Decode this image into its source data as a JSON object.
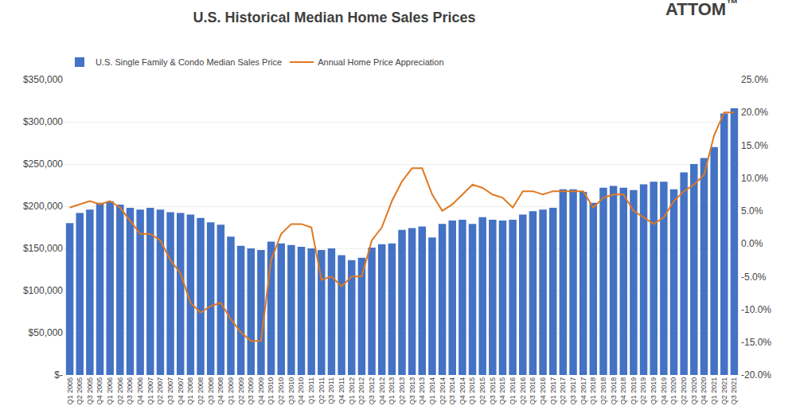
{
  "chart_data": {
    "type": "bar",
    "title": "U.S. Historical Median Home Sales Prices",
    "categories": [
      "Q1 2005",
      "Q2 2005",
      "Q3 2005",
      "Q4 2005",
      "Q1 2006",
      "Q2 2006",
      "Q3 2006",
      "Q4 2006",
      "Q1 2007",
      "Q2 2007",
      "Q3 2007",
      "Q4 2007",
      "Q1 2008",
      "Q2 2008",
      "Q3 2008",
      "Q4 2008",
      "Q1 2009",
      "Q2 2009",
      "Q3 2009",
      "Q4 2009",
      "Q1 2010",
      "Q2 2010",
      "Q3 2010",
      "Q4 2010",
      "Q1 2011",
      "Q2 2011",
      "Q3 2011",
      "Q4 2011",
      "Q1 2012",
      "Q2 2012",
      "Q3 2012",
      "Q4 2012",
      "Q1 2013",
      "Q2 2013",
      "Q3 2013",
      "Q4 2013",
      "Q1 2014",
      "Q2 2014",
      "Q3 2014",
      "Q4 2014",
      "Q1 2015",
      "Q2 2015",
      "Q3 2015",
      "Q4 2015",
      "Q1 2016",
      "Q2 2016",
      "Q3 2016",
      "Q4 2016",
      "Q1 2017",
      "Q2 2017",
      "Q3 2017",
      "Q4 2017",
      "Q1 2018",
      "Q2 2018",
      "Q3 2018",
      "Q4 2018",
      "Q1 2019",
      "Q2 2019",
      "Q3 2019",
      "Q4 2019",
      "Q1 2020",
      "Q2 2020",
      "Q3 2020",
      "Q4 2020",
      "Q1 2021",
      "Q2 2021",
      "Q3 2021"
    ],
    "series": [
      {
        "name": "U.S. Single Family & Condo Median Sales Price",
        "type": "bar",
        "color": "#4472C4",
        "values": [
          180000,
          192000,
          196000,
          204000,
          206000,
          202000,
          198000,
          196000,
          198000,
          196000,
          193000,
          192000,
          190000,
          186000,
          181000,
          178000,
          164000,
          153000,
          150000,
          148000,
          158000,
          156000,
          154000,
          152000,
          150000,
          148000,
          150000,
          142000,
          136000,
          139000,
          151000,
          155000,
          156000,
          172000,
          174000,
          176000,
          163000,
          179000,
          183000,
          184000,
          179000,
          187000,
          184000,
          183000,
          184000,
          190000,
          194000,
          196000,
          198000,
          220000,
          220000,
          217000,
          204000,
          222000,
          224000,
          222000,
          219000,
          226000,
          229000,
          229000,
          220000,
          240000,
          250000,
          257000,
          270000,
          310000,
          316000
        ]
      },
      {
        "name": "Annual Home Price Appreciation",
        "type": "line",
        "color": "#E07820",
        "axis": "y2",
        "values": [
          0.055,
          0.06,
          0.065,
          0.06,
          0.065,
          0.055,
          0.035,
          0.015,
          0.015,
          0.005,
          -0.025,
          -0.045,
          -0.09,
          -0.105,
          -0.095,
          -0.09,
          -0.115,
          -0.135,
          -0.148,
          -0.148,
          -0.025,
          0.015,
          0.03,
          0.03,
          0.025,
          -0.055,
          -0.05,
          -0.065,
          -0.05,
          -0.05,
          0.005,
          0.025,
          0.065,
          0.095,
          0.115,
          0.115,
          0.075,
          0.05,
          0.06,
          0.075,
          0.09,
          0.085,
          0.075,
          0.07,
          0.055,
          0.08,
          0.08,
          0.075,
          0.08,
          0.08,
          0.08,
          0.08,
          0.055,
          0.07,
          0.075,
          0.075,
          0.05,
          0.04,
          0.03,
          0.04,
          0.065,
          0.08,
          0.09,
          0.105,
          0.165,
          0.2,
          0.2
        ]
      }
    ],
    "ylim": [
      0,
      350000
    ],
    "yticks": [
      {
        "value": 0,
        "label": "$-"
      },
      {
        "value": 50000,
        "label": "$50,000"
      },
      {
        "value": 100000,
        "label": "$100,000"
      },
      {
        "value": 150000,
        "label": "$150,000"
      },
      {
        "value": 200000,
        "label": "$200,000"
      },
      {
        "value": 250000,
        "label": "$250,000"
      },
      {
        "value": 300000,
        "label": "$300,000"
      },
      {
        "value": 350000,
        "label": "$350,000"
      }
    ],
    "y2lim": [
      -0.2,
      0.25
    ],
    "y2ticks": [
      {
        "value": -0.2,
        "label": "-20.0%"
      },
      {
        "value": -0.15,
        "label": "-15.0%"
      },
      {
        "value": -0.1,
        "label": "-10.0%"
      },
      {
        "value": -0.05,
        "label": "-5.0%"
      },
      {
        "value": 0.0,
        "label": "0.0%"
      },
      {
        "value": 0.05,
        "label": "5.0%"
      },
      {
        "value": 0.1,
        "label": "10.0%"
      },
      {
        "value": 0.15,
        "label": "15.0%"
      },
      {
        "value": 0.2,
        "label": "20.0%"
      },
      {
        "value": 0.25,
        "label": "25.0%"
      }
    ],
    "grid": true,
    "legend": "top",
    "annotations": [
      "ATTOM",
      "™"
    ]
  }
}
